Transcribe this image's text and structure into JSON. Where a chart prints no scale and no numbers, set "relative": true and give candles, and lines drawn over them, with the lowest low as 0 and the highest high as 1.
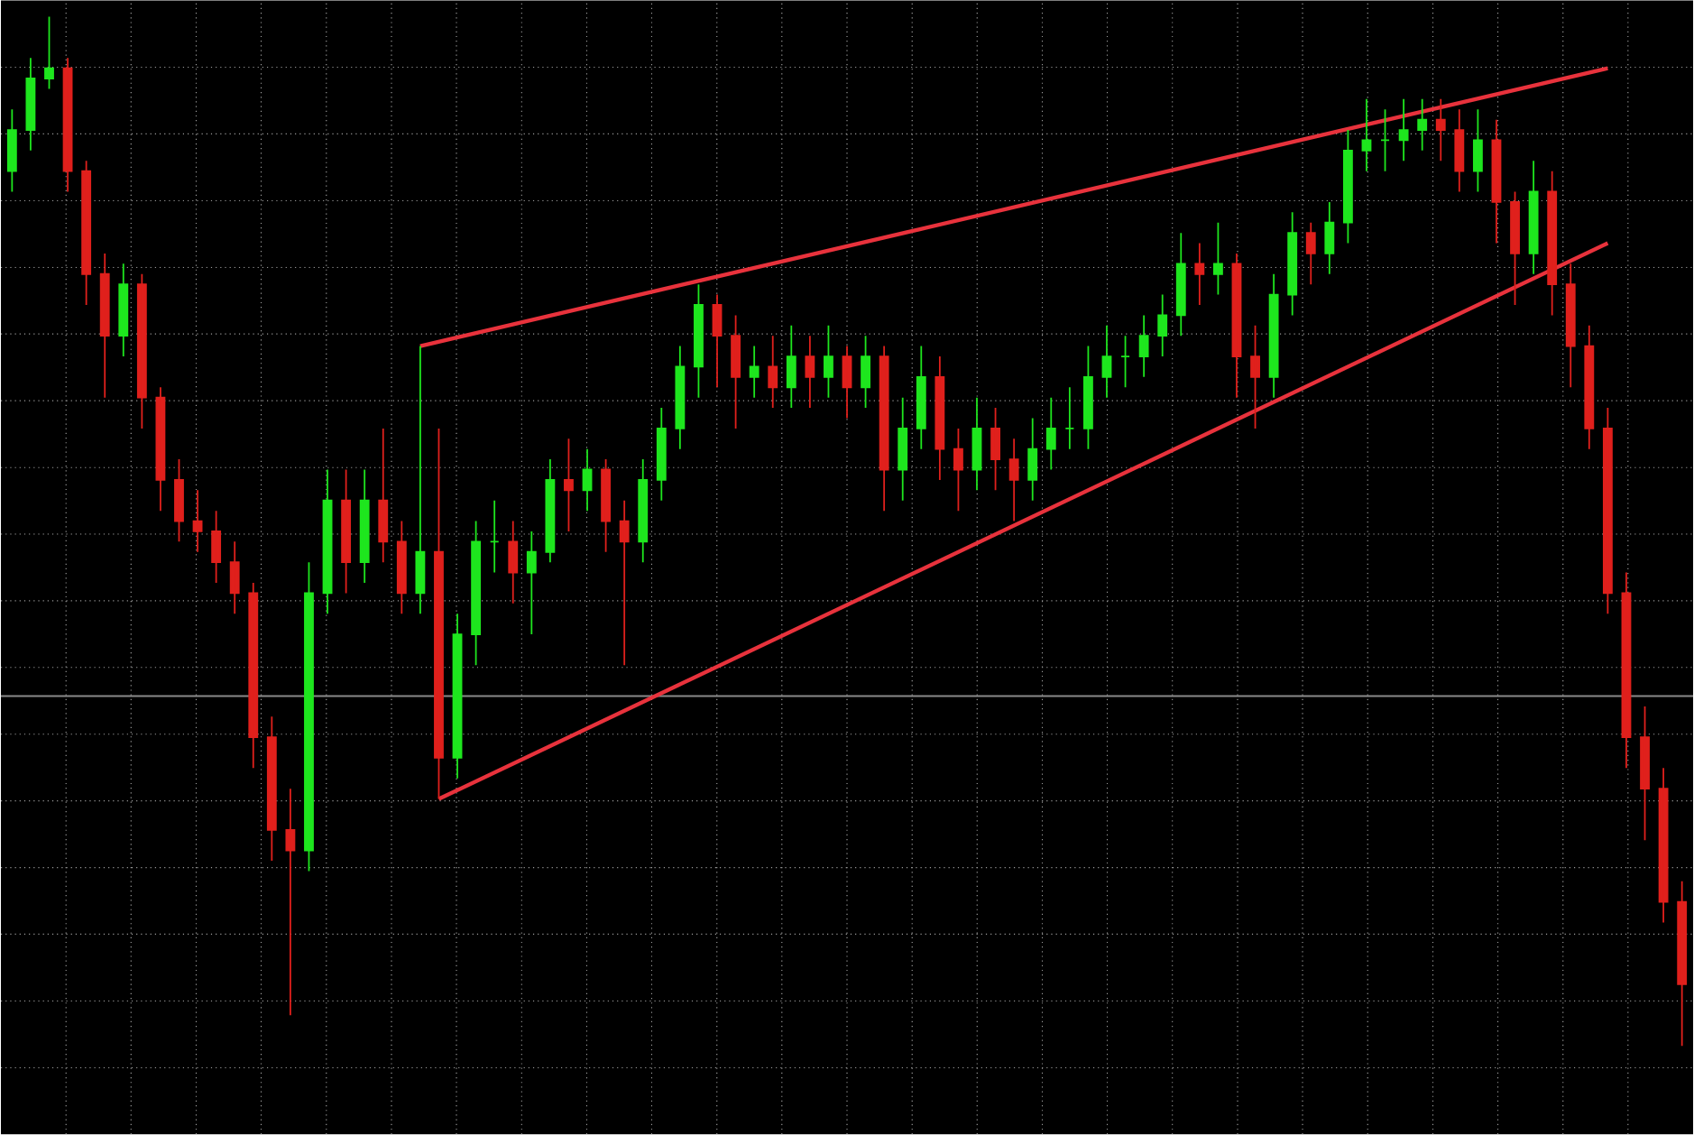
{
  "chart_data": {
    "type": "candlestick",
    "relative": true,
    "grid": true,
    "categories": [
      null,
      null,
      null,
      null,
      null,
      null,
      null,
      null,
      null,
      null,
      null,
      null,
      null,
      null,
      null,
      null,
      null,
      null,
      null,
      null,
      null,
      null,
      null,
      null,
      null,
      null,
      null,
      null,
      null,
      null,
      null,
      null,
      null,
      null,
      null,
      null,
      null,
      null,
      null,
      null,
      null,
      null,
      null,
      null,
      null,
      null,
      null,
      null,
      null,
      null,
      null,
      null,
      null,
      null,
      null,
      null,
      null,
      null,
      null,
      null,
      null,
      null,
      null,
      null,
      null,
      null,
      null,
      null,
      null,
      null,
      null,
      null,
      null,
      null,
      null,
      null,
      null,
      null,
      null,
      null,
      null,
      null,
      null,
      null,
      null,
      null,
      null,
      null,
      null,
      null,
      null
    ],
    "ohlc": [
      [
        0.85,
        0.91,
        0.83,
        0.89
      ],
      [
        0.89,
        0.96,
        0.87,
        0.94
      ],
      [
        0.94,
        1.0,
        0.93,
        0.95
      ],
      [
        0.95,
        0.96,
        0.83,
        0.85
      ],
      [
        0.85,
        0.86,
        0.72,
        0.75
      ],
      [
        0.75,
        0.77,
        0.63,
        0.69
      ],
      [
        0.69,
        0.76,
        0.67,
        0.74
      ],
      [
        0.74,
        0.75,
        0.6,
        0.63
      ],
      [
        0.63,
        0.64,
        0.52,
        0.55
      ],
      [
        0.55,
        0.57,
        0.49,
        0.51
      ],
      [
        0.51,
        0.54,
        0.48,
        0.5
      ],
      [
        0.5,
        0.52,
        0.45,
        0.47
      ],
      [
        0.47,
        0.49,
        0.42,
        0.44
      ],
      [
        0.44,
        0.45,
        0.27,
        0.3
      ],
      [
        0.3,
        0.32,
        0.18,
        0.21
      ],
      [
        0.21,
        0.25,
        0.03,
        0.19
      ],
      [
        0.19,
        0.47,
        0.17,
        0.44
      ],
      [
        0.44,
        0.56,
        0.42,
        0.53
      ],
      [
        0.53,
        0.56,
        0.44,
        0.47
      ],
      [
        0.47,
        0.56,
        0.45,
        0.53
      ],
      [
        0.53,
        0.6,
        0.47,
        0.49
      ],
      [
        0.49,
        0.51,
        0.42,
        0.44
      ],
      [
        0.44,
        0.68,
        0.42,
        0.48
      ],
      [
        0.48,
        0.6,
        0.24,
        0.28
      ],
      [
        0.28,
        0.42,
        0.26,
        0.4
      ],
      [
        0.4,
        0.51,
        0.37,
        0.49
      ],
      [
        0.49,
        0.53,
        0.46,
        0.49
      ],
      [
        0.49,
        0.51,
        0.43,
        0.46
      ],
      [
        0.46,
        0.5,
        0.4,
        0.48
      ],
      [
        0.48,
        0.57,
        0.47,
        0.55
      ],
      [
        0.55,
        0.59,
        0.5,
        0.54
      ],
      [
        0.54,
        0.58,
        0.52,
        0.56
      ],
      [
        0.56,
        0.57,
        0.48,
        0.51
      ],
      [
        0.51,
        0.53,
        0.37,
        0.49
      ],
      [
        0.49,
        0.57,
        0.47,
        0.55
      ],
      [
        0.55,
        0.62,
        0.53,
        0.6
      ],
      [
        0.6,
        0.68,
        0.58,
        0.66
      ],
      [
        0.66,
        0.74,
        0.63,
        0.72
      ],
      [
        0.72,
        0.73,
        0.64,
        0.69
      ],
      [
        0.69,
        0.71,
        0.6,
        0.65
      ],
      [
        0.65,
        0.68,
        0.63,
        0.66
      ],
      [
        0.66,
        0.69,
        0.62,
        0.64
      ],
      [
        0.64,
        0.7,
        0.62,
        0.67
      ],
      [
        0.67,
        0.69,
        0.62,
        0.65
      ],
      [
        0.65,
        0.7,
        0.63,
        0.67
      ],
      [
        0.67,
        0.68,
        0.61,
        0.64
      ],
      [
        0.64,
        0.69,
        0.62,
        0.67
      ],
      [
        0.67,
        0.68,
        0.52,
        0.56
      ],
      [
        0.56,
        0.63,
        0.53,
        0.6
      ],
      [
        0.6,
        0.68,
        0.58,
        0.65
      ],
      [
        0.65,
        0.67,
        0.55,
        0.58
      ],
      [
        0.58,
        0.6,
        0.52,
        0.56
      ],
      [
        0.56,
        0.63,
        0.54,
        0.6
      ],
      [
        0.6,
        0.62,
        0.54,
        0.57
      ],
      [
        0.57,
        0.59,
        0.51,
        0.55
      ],
      [
        0.55,
        0.61,
        0.53,
        0.58
      ],
      [
        0.58,
        0.63,
        0.56,
        0.6
      ],
      [
        0.6,
        0.64,
        0.58,
        0.6
      ],
      [
        0.6,
        0.68,
        0.58,
        0.65
      ],
      [
        0.65,
        0.7,
        0.63,
        0.67
      ],
      [
        0.67,
        0.69,
        0.64,
        0.67
      ],
      [
        0.67,
        0.71,
        0.65,
        0.69
      ],
      [
        0.69,
        0.73,
        0.67,
        0.71
      ],
      [
        0.71,
        0.79,
        0.69,
        0.76
      ],
      [
        0.76,
        0.78,
        0.72,
        0.75
      ],
      [
        0.75,
        0.8,
        0.73,
        0.76
      ],
      [
        0.76,
        0.77,
        0.63,
        0.67
      ],
      [
        0.67,
        0.7,
        0.6,
        0.65
      ],
      [
        0.65,
        0.75,
        0.63,
        0.73
      ],
      [
        0.73,
        0.81,
        0.71,
        0.79
      ],
      [
        0.79,
        0.8,
        0.74,
        0.77
      ],
      [
        0.77,
        0.82,
        0.75,
        0.8
      ],
      [
        0.8,
        0.89,
        0.78,
        0.87
      ],
      [
        0.87,
        0.92,
        0.85,
        0.88
      ],
      [
        0.88,
        0.91,
        0.85,
        0.88
      ],
      [
        0.88,
        0.92,
        0.86,
        0.89
      ],
      [
        0.89,
        0.92,
        0.87,
        0.9
      ],
      [
        0.9,
        0.92,
        0.86,
        0.89
      ],
      [
        0.89,
        0.91,
        0.83,
        0.85
      ],
      [
        0.85,
        0.91,
        0.83,
        0.88
      ],
      [
        0.88,
        0.9,
        0.78,
        0.82
      ],
      [
        0.82,
        0.83,
        0.72,
        0.77
      ],
      [
        0.77,
        0.86,
        0.75,
        0.83
      ],
      [
        0.83,
        0.85,
        0.71,
        0.74
      ],
      [
        0.74,
        0.76,
        0.64,
        0.68
      ],
      [
        0.68,
        0.7,
        0.58,
        0.6
      ],
      [
        0.6,
        0.62,
        0.42,
        0.44
      ],
      [
        0.44,
        0.46,
        0.27,
        0.3
      ],
      [
        0.3,
        0.33,
        0.2,
        0.25
      ],
      [
        0.25,
        0.27,
        0.12,
        0.14
      ],
      [
        0.14,
        0.16,
        0.0,
        0.06
      ]
    ],
    "series": [
      {
        "type": "line",
        "color": "#e8323c",
        "values": [
          null,
          null,
          null,
          null,
          null,
          null,
          null,
          null,
          null,
          null,
          null,
          null,
          null,
          null,
          null,
          null,
          null,
          null,
          null,
          null,
          null,
          null,
          0.68,
          null,
          null,
          null,
          null,
          null,
          null,
          null,
          null,
          null,
          null,
          null,
          null,
          null,
          null,
          null,
          null,
          null,
          null,
          null,
          null,
          null,
          null,
          null,
          null,
          null,
          null,
          null,
          null,
          null,
          null,
          null,
          null,
          null,
          null,
          null,
          null,
          null,
          null,
          null,
          null,
          null,
          null,
          null,
          null,
          null,
          null,
          null,
          null,
          null,
          null,
          null,
          null,
          null,
          null,
          null,
          null,
          null,
          null,
          null,
          null,
          null,
          null,
          null,
          0.95,
          null,
          null,
          null,
          null
        ]
      },
      {
        "type": "line",
        "color": "#e8323c",
        "values": [
          null,
          null,
          null,
          null,
          null,
          null,
          null,
          null,
          null,
          null,
          null,
          null,
          null,
          null,
          null,
          null,
          null,
          null,
          null,
          null,
          null,
          null,
          null,
          0.24,
          null,
          null,
          null,
          null,
          null,
          null,
          null,
          null,
          null,
          null,
          null,
          null,
          null,
          null,
          null,
          null,
          null,
          null,
          null,
          null,
          null,
          null,
          null,
          null,
          null,
          null,
          null,
          null,
          null,
          null,
          null,
          null,
          null,
          null,
          null,
          null,
          null,
          null,
          null,
          null,
          null,
          null,
          null,
          null,
          null,
          null,
          null,
          null,
          null,
          null,
          null,
          null,
          null,
          null,
          null,
          null,
          null,
          null,
          null,
          null,
          null,
          null,
          0.78,
          null,
          null,
          null,
          null
        ]
      }
    ],
    "ref_lines": [
      {
        "axis": "y",
        "value": 0.34,
        "color": "#8a8a8a"
      }
    ]
  }
}
